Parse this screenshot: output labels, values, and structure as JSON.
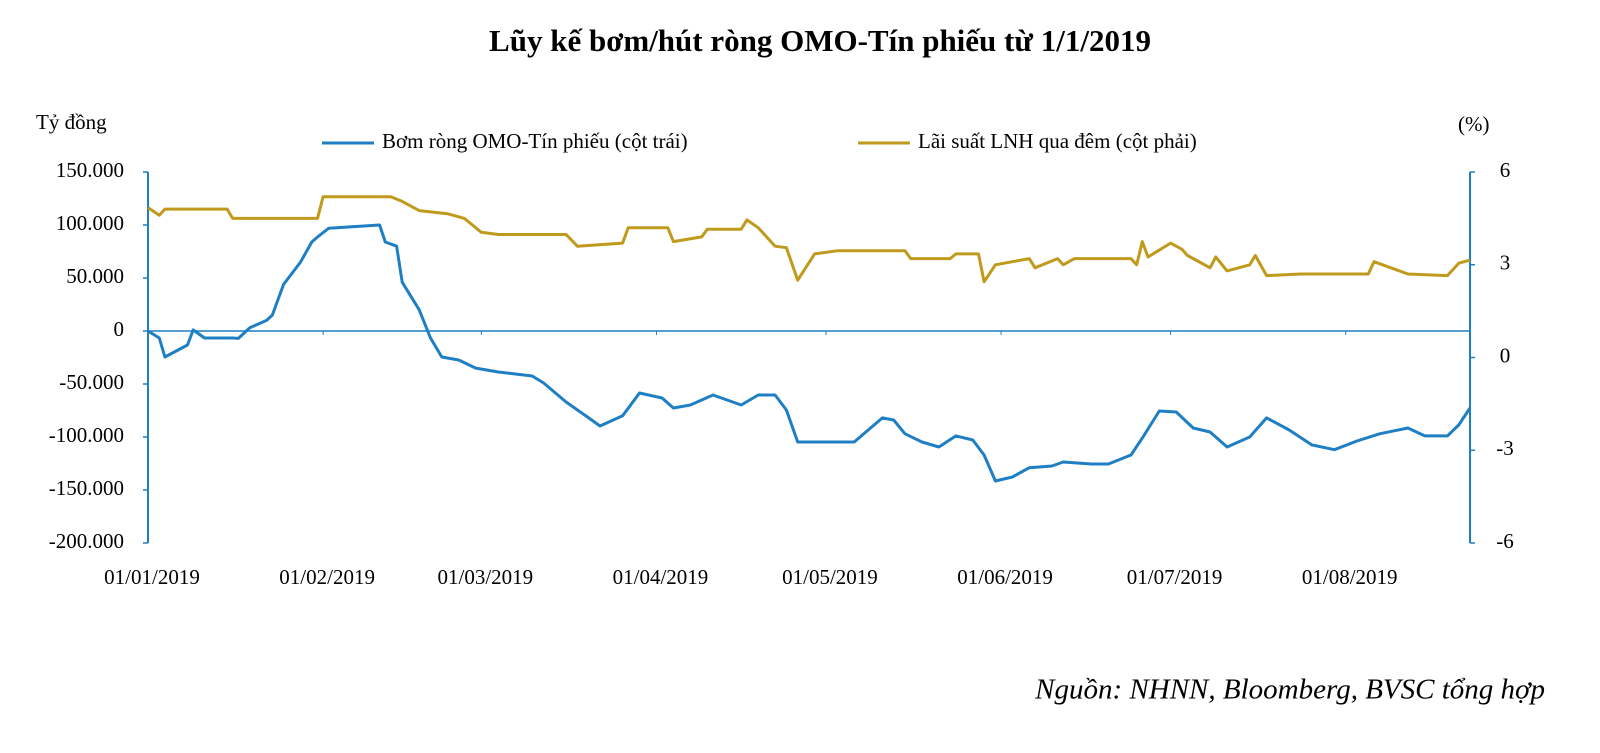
{
  "chart_data": {
    "type": "line",
    "title": "Lũy kế bơm/hút ròng OMO-Tín phiếu từ 1/1/2019",
    "ylabel": "Tỷ đồng",
    "y2label": "(%)",
    "source": "Nguồn: NHNN, Bloomberg, BVSC tổng hợp",
    "xlim": [
      "01/01/2019",
      "23/08/2019"
    ],
    "xticks": [
      "01/01/2019",
      "01/02/2019",
      "01/03/2019",
      "01/04/2019",
      "01/05/2019",
      "01/06/2019",
      "01/07/2019",
      "01/08/2019"
    ],
    "ylim": [
      -200000,
      150000
    ],
    "yticks": [
      {
        "value": 150000,
        "label": "150.000"
      },
      {
        "value": 100000,
        "label": "100.000"
      },
      {
        "value": 50000,
        "label": "50.000"
      },
      0,
      {
        "value": -50000,
        "label": "-50.000"
      },
      {
        "value": -100000,
        "label": "-100.000"
      },
      {
        "value": -150000,
        "label": "-150.000"
      },
      {
        "value": -200000,
        "label": "-200.000"
      }
    ],
    "y2lim": [
      -6,
      6
    ],
    "y2ticks": [
      6,
      3,
      0,
      -3,
      -6
    ],
    "axis_color": "#1f7fc4",
    "series": [
      {
        "name": "Bơm ròng OMO-Tín  phiếu (cột trái)",
        "color": "#1f7fc4",
        "axis": "y",
        "x": [
          "01/01/2019",
          "03/01/2019",
          "04/01/2019",
          "08/01/2019",
          "09/01/2019",
          "11/01/2019",
          "16/01/2019",
          "17/01/2019",
          "19/01/2019",
          "22/01/2019",
          "23/01/2019",
          "25/01/2019",
          "28/01/2019",
          "30/01/2019",
          "31/01/2019",
          "02/02/2019",
          "11/02/2019",
          "12/02/2019",
          "14/02/2019",
          "15/02/2019",
          "18/02/2019",
          "20/02/2019",
          "22/02/2019",
          "25/02/2019",
          "28/02/2019",
          "04/03/2019",
          "10/03/2019",
          "12/03/2019",
          "16/03/2019",
          "20/03/2019",
          "22/03/2019",
          "26/03/2019",
          "29/03/2019",
          "02/04/2019",
          "04/04/2019",
          "07/04/2019",
          "11/04/2019",
          "16/04/2019",
          "19/04/2019",
          "22/04/2019",
          "24/04/2019",
          "26/04/2019",
          "06/05/2019",
          "11/05/2019",
          "13/05/2019",
          "15/05/2019",
          "18/05/2019",
          "21/05/2019",
          "24/05/2019",
          "27/05/2019",
          "29/05/2019",
          "31/05/2019",
          "03/06/2019",
          "06/06/2019",
          "10/06/2019",
          "12/06/2019",
          "17/06/2019",
          "20/06/2019",
          "24/06/2019",
          "26/06/2019",
          "29/06/2019",
          "02/07/2019",
          "05/07/2019",
          "08/07/2019",
          "11/07/2019",
          "15/07/2019",
          "18/07/2019",
          "22/07/2019",
          "26/07/2019",
          "30/07/2019",
          "03/08/2019",
          "07/08/2019",
          "12/08/2019",
          "15/08/2019",
          "19/08/2019",
          "21/08/2019",
          "23/08/2019"
        ],
        "values": [
          0,
          -6600,
          -24500,
          -13200,
          1000,
          -6600,
          -6600,
          -7000,
          3000,
          10000,
          15000,
          44000,
          65000,
          84000,
          88700,
          97000,
          100000,
          84000,
          80000,
          46000,
          20000,
          -6600,
          -24500,
          -27400,
          -35000,
          -38700,
          -42500,
          -49000,
          -67000,
          -82000,
          -89600,
          -80000,
          -58500,
          -63200,
          -72600,
          -69800,
          -60400,
          -69800,
          -60400,
          -60400,
          -74500,
          -104700,
          -104700,
          -82000,
          -84000,
          -97000,
          -104700,
          -109400,
          -99000,
          -102800,
          -117000,
          -141500,
          -137700,
          -129000,
          -127400,
          -123600,
          -125500,
          -125500,
          -117000,
          -101000,
          -75500,
          -76400,
          -91500,
          -95300,
          -109400,
          -100000,
          -82000,
          -93400,
          -107500,
          -112000,
          -103800,
          -97000,
          -91500,
          -99000,
          -99000,
          -88700,
          -72600
        ]
      },
      {
        "name": "Lãi  suất LNH  qua đêm (cột phải)",
        "color": "#c09a1c",
        "axis": "y2",
        "x": [
          "01/01/2019",
          "03/01/2019",
          "04/01/2019",
          "15/01/2019",
          "16/01/2019",
          "31/01/2019",
          "01/02/2019",
          "13/02/2019",
          "15/02/2019",
          "18/02/2019",
          "23/02/2019",
          "26/02/2019",
          "01/03/2019",
          "04/03/2019",
          "16/03/2019",
          "18/03/2019",
          "26/03/2019",
          "27/03/2019",
          "03/04/2019",
          "04/04/2019",
          "09/04/2019",
          "10/04/2019",
          "16/04/2019",
          "17/04/2019",
          "19/04/2019",
          "22/04/2019",
          "24/04/2019",
          "26/04/2019",
          "29/04/2019",
          "03/05/2019",
          "15/05/2019",
          "16/05/2019",
          "23/05/2019",
          "24/05/2019",
          "28/05/2019",
          "29/05/2019",
          "31/05/2019",
          "03/06/2019",
          "06/06/2019",
          "07/06/2019",
          "11/06/2019",
          "12/06/2019",
          "14/06/2019",
          "20/06/2019",
          "24/06/2019",
          "25/06/2019",
          "26/06/2019",
          "27/06/2019",
          "01/07/2019",
          "03/07/2019",
          "04/07/2019",
          "08/07/2019",
          "09/07/2019",
          "11/07/2019",
          "15/07/2019",
          "16/07/2019",
          "18/07/2019",
          "24/07/2019",
          "05/08/2019",
          "06/08/2019",
          "09/08/2019",
          "12/08/2019",
          "19/08/2019",
          "21/08/2019",
          "23/08/2019"
        ],
        "values": [
          4.85,
          4.6,
          4.8,
          4.8,
          4.5,
          4.5,
          5.2,
          5.2,
          5.05,
          4.75,
          4.65,
          4.5,
          4.05,
          3.98,
          3.98,
          3.6,
          3.7,
          4.2,
          4.2,
          3.75,
          3.9,
          4.15,
          4.15,
          4.45,
          4.2,
          3.6,
          3.55,
          2.5,
          3.35,
          3.45,
          3.45,
          3.2,
          3.2,
          3.35,
          3.35,
          2.45,
          3.0,
          3.1,
          3.2,
          2.9,
          3.2,
          3.0,
          3.2,
          3.2,
          3.2,
          3.0,
          3.75,
          3.25,
          3.7,
          3.5,
          3.3,
          2.9,
          3.25,
          2.8,
          3.0,
          3.3,
          2.65,
          2.7,
          2.7,
          3.1,
          2.9,
          2.7,
          2.65,
          3.05,
          3.15
        ]
      }
    ]
  }
}
